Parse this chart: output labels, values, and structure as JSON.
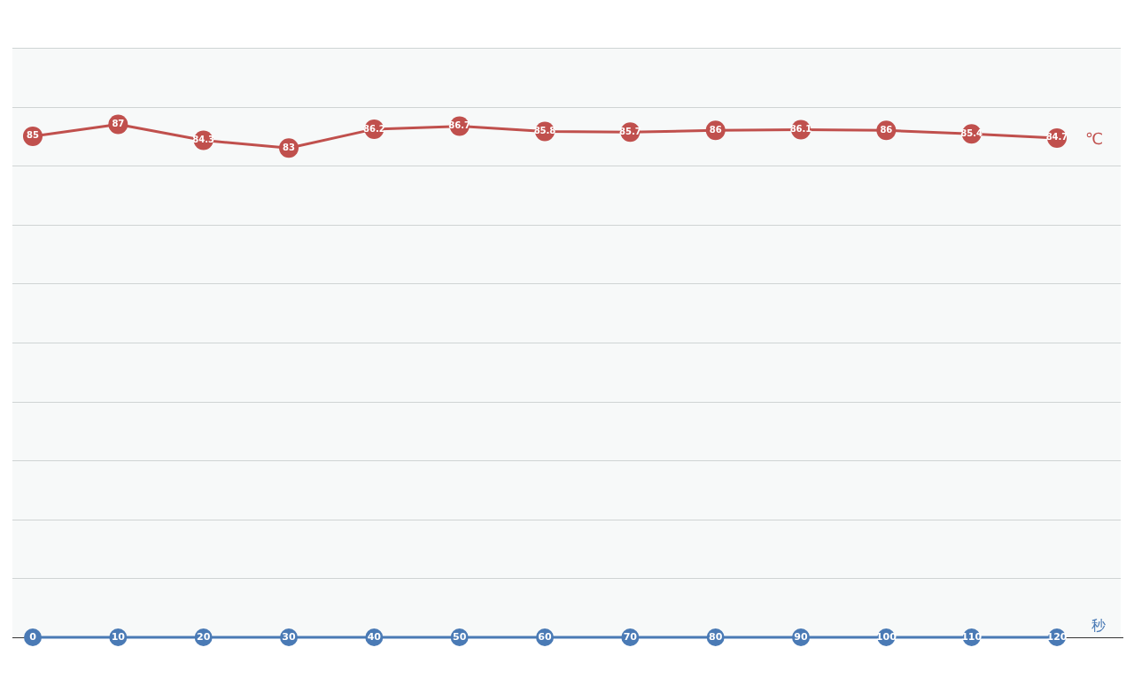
{
  "chart_data": {
    "type": "line",
    "categories": [
      "0",
      "10",
      "20",
      "30",
      "40",
      "50",
      "60",
      "70",
      "80",
      "90",
      "100",
      "110",
      "120"
    ],
    "series": [
      {
        "name": "℃",
        "color": "#c0504d",
        "values": [
          85,
          87,
          84.3,
          83,
          86.2,
          86.7,
          85.8,
          85.7,
          86,
          86.1,
          86,
          85.4,
          84.7
        ]
      }
    ],
    "xlabel": "秒",
    "ylim": [
      0,
      100
    ],
    "yticks": [
      {
        "value": 0,
        "label": null
      },
      {
        "value": 10,
        "label": null
      },
      {
        "value": 20,
        "label": null
      },
      {
        "value": 30,
        "label": null
      },
      {
        "value": 40,
        "label": null
      },
      {
        "value": 50,
        "label": null
      },
      {
        "value": 60,
        "label": null
      },
      {
        "value": 70,
        "label": null
      },
      {
        "value": 80,
        "label": null
      },
      {
        "value": 90,
        "label": null
      },
      {
        "value": 100,
        "label": null
      }
    ],
    "tick_labels": "x",
    "grid": "y",
    "marker": "circle",
    "line_style": "solid",
    "data_labels": true,
    "legend": false
  }
}
